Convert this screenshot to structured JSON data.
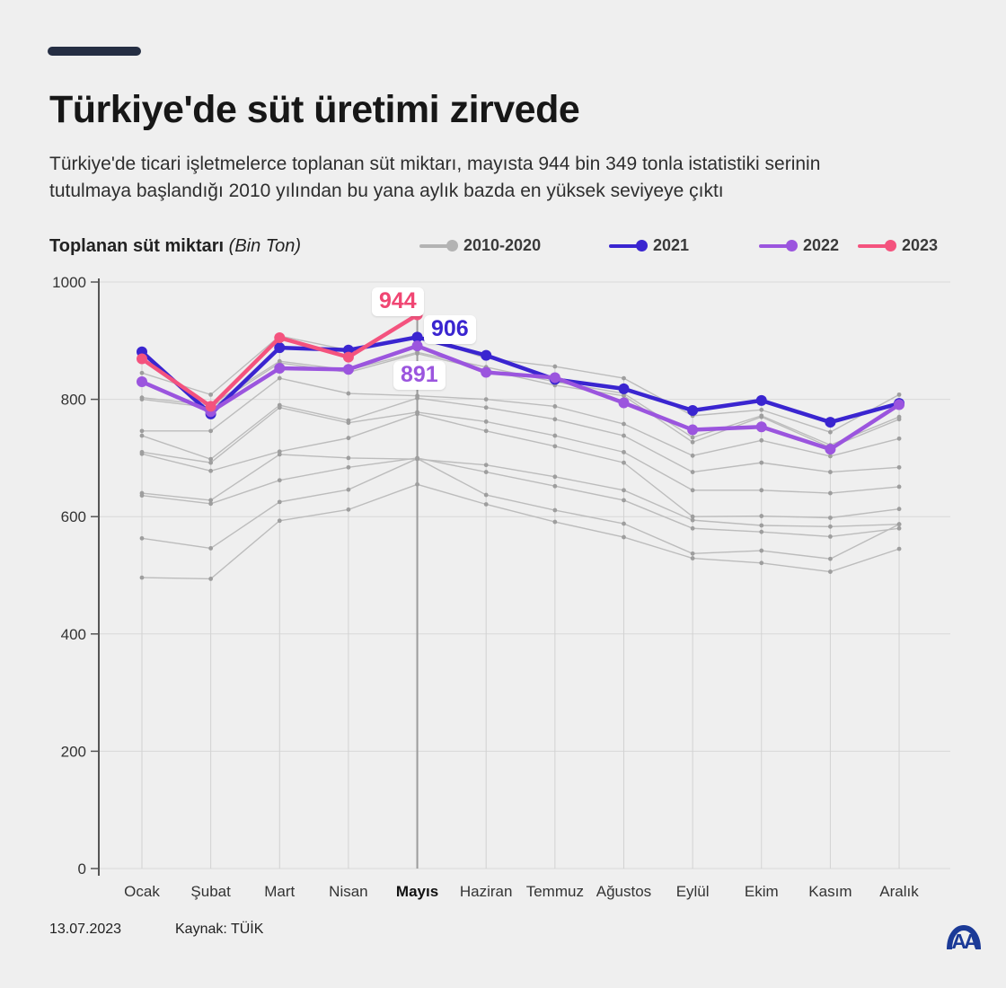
{
  "header": {
    "title": "Türkiye'de süt üretimi zirvede",
    "subtitle": "Türkiye'de ticari işletmelerce toplanan süt miktarı, mayısta 944 bin 349 tonla istatistiki serinin tutulmaya başlandığı 2010 yılından bu yana aylık bazda en yüksek seviyeye çıktı"
  },
  "legend": {
    "title": "Toplanan süt miktarı",
    "unit": "(Bin Ton)",
    "items": [
      {
        "label": "2010-2020",
        "color": "#b3b3b3"
      },
      {
        "label": "2021",
        "color": "#3a25d0"
      },
      {
        "label": "2022",
        "color": "#9b55de"
      },
      {
        "label": "2023",
        "color": "#f4537e"
      }
    ]
  },
  "chart_data": {
    "type": "line",
    "title": "Toplanan süt miktarı (Bin Ton)",
    "ylabel": "Bin Ton",
    "ylim": [
      0,
      1000
    ],
    "y_ticks": [
      0,
      200,
      400,
      600,
      800,
      1000
    ],
    "grid": true,
    "legend_position": "top",
    "categories": [
      "Ocak",
      "Şubat",
      "Mart",
      "Nisan",
      "Mayıs",
      "Haziran",
      "Temmuz",
      "Ağustos",
      "Eylül",
      "Ekim",
      "Kasım",
      "Aralık"
    ],
    "highlight_category": "Mayıs",
    "series": [
      {
        "name": "2010",
        "group": "2010-2020",
        "color": "#bcbcbc",
        "dot_color": "#9e9e9e",
        "width": 1.4,
        "values": [
          496,
          494,
          593,
          612,
          655,
          621,
          591,
          565,
          529,
          521,
          506,
          545
        ]
      },
      {
        "name": "2011",
        "group": "2010-2020",
        "color": "#bcbcbc",
        "dot_color": "#9e9e9e",
        "width": 1.4,
        "values": [
          563,
          546,
          625,
          646,
          699,
          637,
          611,
          588,
          537,
          542,
          528,
          587
        ]
      },
      {
        "name": "2012",
        "group": "2010-2020",
        "color": "#bcbcbc",
        "dot_color": "#9e9e9e",
        "width": 1.4,
        "values": [
          636,
          622,
          662,
          684,
          700,
          676,
          652,
          628,
          580,
          574,
          566,
          580
        ]
      },
      {
        "name": "2013",
        "group": "2010-2020",
        "color": "#bcbcbc",
        "dot_color": "#9e9e9e",
        "width": 1.4,
        "values": [
          640,
          628,
          706,
          700,
          698,
          688,
          668,
          645,
          594,
          585,
          583,
          587
        ]
      },
      {
        "name": "2014",
        "group": "2010-2020",
        "color": "#bcbcbc",
        "dot_color": "#9e9e9e",
        "width": 1.4,
        "values": [
          707,
          678,
          711,
          734,
          775,
          746,
          720,
          692,
          600,
          601,
          598,
          613
        ]
      },
      {
        "name": "2015",
        "group": "2010-2020",
        "color": "#bcbcbc",
        "dot_color": "#9e9e9e",
        "width": 1.4,
        "values": [
          710,
          692,
          786,
          760,
          778,
          762,
          738,
          710,
          645,
          645,
          640,
          651
        ]
      },
      {
        "name": "2016",
        "group": "2010-2020",
        "color": "#bcbcbc",
        "dot_color": "#9e9e9e",
        "width": 1.4,
        "values": [
          738,
          698,
          790,
          764,
          802,
          786,
          766,
          738,
          676,
          692,
          676,
          684
        ]
      },
      {
        "name": "2017",
        "group": "2010-2020",
        "color": "#bcbcbc",
        "dot_color": "#9e9e9e",
        "width": 1.4,
        "values": [
          746,
          746,
          836,
          810,
          806,
          800,
          788,
          758,
          704,
          730,
          703,
          733
        ]
      },
      {
        "name": "2018",
        "group": "2010-2020",
        "color": "#bcbcbc",
        "dot_color": "#9e9e9e",
        "width": 1.4,
        "values": [
          800,
          786,
          862,
          846,
          878,
          850,
          824,
          806,
          727,
          770,
          718,
          766
        ]
      },
      {
        "name": "2019",
        "group": "2010-2020",
        "color": "#bcbcbc",
        "dot_color": "#9e9e9e",
        "width": 1.4,
        "values": [
          803,
          790,
          865,
          850,
          880,
          855,
          830,
          810,
          735,
          772,
          722,
          770
        ]
      },
      {
        "name": "2020",
        "group": "2010-2020",
        "color": "#bcbcbc",
        "dot_color": "#9e9e9e",
        "width": 1.4,
        "values": [
          845,
          808,
          908,
          884,
          908,
          870,
          856,
          836,
          772,
          782,
          744,
          808
        ]
      },
      {
        "name": "2021",
        "color": "#3a25d0",
        "dot_color": "#3a25d0",
        "width": 4.5,
        "values": [
          881,
          775,
          888,
          884,
          906,
          875,
          834,
          818,
          781,
          798,
          761,
          793
        ]
      },
      {
        "name": "2022",
        "color": "#9b55de",
        "dot_color": "#9b55de",
        "width": 4.5,
        "values": [
          830,
          779,
          853,
          851,
          891,
          846,
          837,
          794,
          748,
          753,
          715,
          791
        ]
      },
      {
        "name": "2023",
        "color": "#f4537e",
        "dot_color": "#f4537e",
        "width": 4.5,
        "values": [
          869,
          788,
          905,
          872,
          944,
          null,
          null,
          null,
          null,
          null,
          null,
          null
        ]
      }
    ],
    "annotations": [
      {
        "text": "944",
        "series": "2023",
        "category": "Mayıs",
        "value": 944,
        "color": "#f04673"
      },
      {
        "text": "906",
        "series": "2021",
        "category": "Mayıs",
        "value": 906,
        "color": "#3a25d0"
      },
      {
        "text": "891",
        "series": "2022",
        "category": "Mayıs",
        "value": 891,
        "color": "#9b55de"
      }
    ]
  },
  "footer": {
    "date": "13.07.2023",
    "source": "Kaynak: TÜİK",
    "logo": "AA"
  }
}
